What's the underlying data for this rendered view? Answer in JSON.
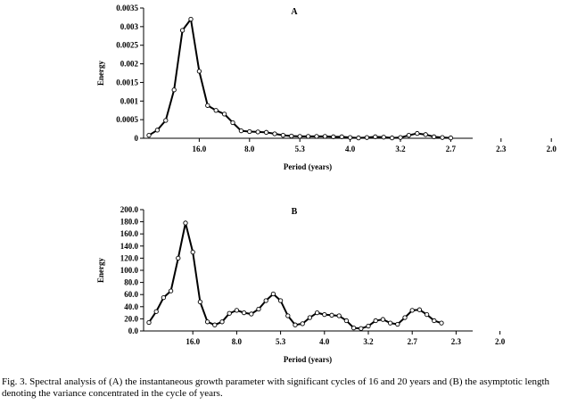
{
  "caption": "Fig. 3. Spectral analysis of (A) the instantaneous growth parameter with significant cycles of 16 and 20 years and (B) the asymptotic length denoting the variance concentrated in the cycle of years.",
  "chart_data": [
    {
      "type": "line",
      "title": "A",
      "xlabel": "Period (years)",
      "ylabel": "Energy",
      "ylim": [
        0,
        0.0035
      ],
      "yticks": [
        "0",
        "0.0005",
        "0.001",
        "0.0015",
        "0.002",
        "0.0025",
        "0.003",
        "0.0035"
      ],
      "xtick_labels": [
        "16.0",
        "8.0",
        "5.3",
        "4.0",
        "3.2",
        "2.7",
        "2.3",
        "2.0"
      ],
      "xtick_index": [
        6,
        12,
        18,
        24,
        30,
        36,
        42,
        48
      ],
      "grid": false,
      "marker": "circle",
      "values": [
        8e-05,
        0.00022,
        0.00048,
        0.0013,
        0.0029,
        0.0032,
        0.0018,
        0.00088,
        0.00075,
        0.00065,
        0.00042,
        0.0002,
        0.00018,
        0.00017,
        0.00016,
        0.00012,
        8e-05,
        6e-05,
        5e-05,
        5e-05,
        5e-05,
        5e-05,
        4e-05,
        4e-05,
        2e-05,
        1e-05,
        2e-05,
        4e-05,
        3e-05,
        1e-05,
        2e-05,
        8e-05,
        0.00013,
        0.0001,
        4e-05,
        2e-05,
        1e-05
      ]
    },
    {
      "type": "line",
      "title": "B",
      "xlabel": "Period (years)",
      "ylabel": "Energy",
      "ylim": [
        0,
        200
      ],
      "yticks": [
        "0.0",
        "20.0",
        "40.0",
        "60.0",
        "80.0",
        "100.0",
        "120.0",
        "140.0",
        "160.0",
        "180.0",
        "200.0"
      ],
      "xtick_labels": [
        "16.0",
        "8.0",
        "5.3",
        "4.0",
        "3.2",
        "2.7",
        "2.3",
        "2.0"
      ],
      "xtick_index": [
        6,
        12,
        18,
        24,
        30,
        36,
        42,
        48
      ],
      "grid": false,
      "marker": "circle",
      "values": [
        14,
        32,
        55,
        66,
        120,
        178,
        130,
        48,
        15,
        10,
        15,
        29,
        34,
        30,
        28,
        36,
        50,
        61,
        50,
        25,
        10,
        12,
        22,
        30,
        27,
        26,
        25,
        17,
        5,
        4,
        8,
        17,
        19,
        13,
        11,
        22,
        34,
        35,
        27,
        17,
        13
      ]
    }
  ]
}
